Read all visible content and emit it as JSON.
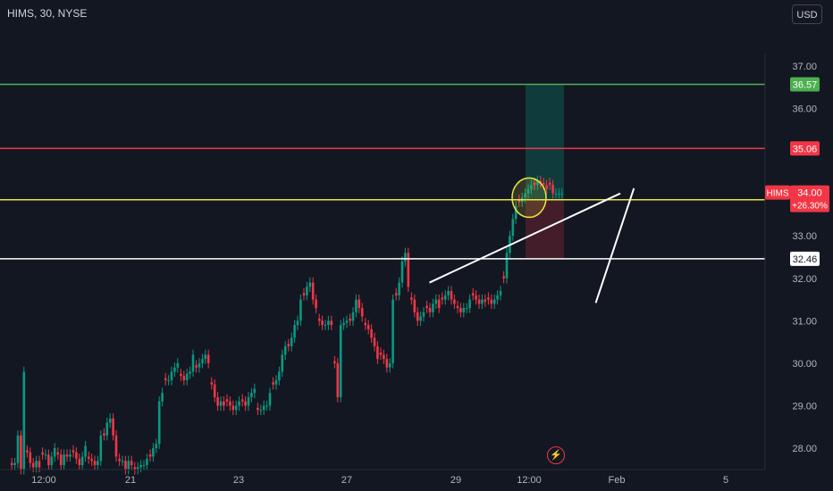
{
  "header": {
    "symbol_title": "HIMS, 30, NYSE",
    "currency": "USD"
  },
  "icons": {
    "flash": "lightning-icon"
  },
  "chart_data": {
    "type": "candlestick",
    "symbol": "HIMS",
    "interval": "30",
    "exchange": "NYSE",
    "y_ticks": [
      "37.00",
      "36.00",
      "35.00",
      "34.00",
      "33.00",
      "32.00",
      "31.00",
      "30.00",
      "29.00",
      "28.00"
    ],
    "x_ticks": [
      "12:00",
      "21",
      "23",
      "27",
      "29",
      "12:00",
      "Feb",
      "5"
    ],
    "ylim": [
      27.6,
      38.2
    ],
    "horizontal_lines": [
      {
        "price": 36.57,
        "label": "36.57",
        "color": "#4caf50"
      },
      {
        "price": 35.06,
        "label": "35.06",
        "color": "#f23645"
      },
      {
        "price": 33.85,
        "label": "",
        "color": "#e8e53f"
      },
      {
        "price": 32.46,
        "label": "32.46",
        "color": "#ffffff"
      }
    ],
    "last_price": {
      "symbol": "HIMS",
      "price": "34.00",
      "change": "+26.30%",
      "color": "#f23645"
    },
    "trend_lines": [
      {
        "from": [
          26.5,
          31.9
        ],
        "to": [
          30.0,
          34.0
        ]
      },
      {
        "from": [
          29.55,
          31.42
        ],
        "to": [
          30.25,
          34.12
        ]
      }
    ],
    "position": {
      "entry": 33.85,
      "target": 36.57,
      "stop": 32.46
    },
    "highlight_circle": {
      "center_price": 33.9,
      "color": "#e8e53f"
    },
    "candles": [
      [
        27.6,
        27.65,
        28.3,
        27.5,
        29.8
      ],
      [
        27.9,
        27.65,
        27.55,
        27.7,
        27.55
      ],
      [
        27.85,
        27.85,
        27.6,
        27.8,
        28.0
      ],
      [
        27.85,
        27.6,
        27.85,
        27.8,
        27.85
      ],
      [
        27.9,
        27.75,
        27.6,
        27.8,
        28.05
      ],
      [
        27.75,
        27.7,
        27.6,
        27.7,
        28.3
      ],
      [
        28.3,
        28.6,
        28.7,
        28.3,
        27.8
      ],
      [
        27.7,
        27.7,
        27.5,
        27.7,
        27.6
      ],
      [
        27.5,
        27.55,
        27.6,
        27.6,
        27.75
      ],
      [
        27.8,
        28.0,
        28.1,
        29.1,
        29.3
      ],
      [
        29.6,
        29.6,
        29.8,
        29.9,
        30.0
      ],
      [
        29.7,
        29.6,
        29.75,
        29.8,
        30.2
      ],
      [
        29.9,
        30.0,
        30.1,
        30.2,
        30.0
      ],
      [
        29.5,
        29.2,
        29.0,
        29.1,
        29.0
      ],
      [
        29.1,
        29.0,
        28.9,
        29.0,
        29.1
      ],
      [
        29.1,
        29.0,
        29.2,
        29.3,
        29.4
      ],
      [
        28.9,
        28.9,
        29.0,
        29.0,
        29.3
      ],
      [
        29.5,
        29.6,
        29.8,
        30.2,
        30.4
      ],
      [
        30.4,
        30.6,
        30.9,
        31.0,
        31.5
      ],
      [
        31.6,
        31.8,
        31.9,
        31.5,
        31.3
      ],
      [
        31.0,
        30.9,
        30.9,
        31.0,
        30.9
      ],
      [
        30.0,
        29.2,
        30.9,
        30.95,
        31.0
      ],
      [
        31.0,
        31.2,
        31.5,
        31.3,
        31.1
      ],
      [
        30.9,
        30.8,
        30.6,
        30.4,
        30.1
      ],
      [
        30.2,
        30.1,
        29.9,
        30.0,
        31.5
      ],
      [
        31.6,
        31.9,
        32.4,
        32.6,
        31.8
      ],
      [
        31.5,
        31.2,
        31.0,
        31.1,
        31.2
      ],
      [
        31.3,
        31.2,
        31.4,
        31.5,
        31.3
      ],
      [
        31.5,
        31.6,
        31.7,
        31.5,
        31.4
      ],
      [
        31.3,
        31.2,
        31.3,
        31.3,
        31.5
      ],
      [
        31.6,
        31.5,
        31.4,
        31.5,
        31.45
      ],
      [
        31.5,
        31.4,
        31.5,
        31.6,
        31.7
      ],
      [
        32.0,
        32.6,
        33.0,
        33.4,
        33.7
      ],
      [
        33.8,
        33.9,
        34.0,
        34.1,
        34.2
      ],
      [
        34.2,
        34.3,
        34.25,
        34.2,
        34.1
      ],
      [
        34.2,
        34.0,
        34.0,
        34.0,
        34.0
      ]
    ]
  }
}
